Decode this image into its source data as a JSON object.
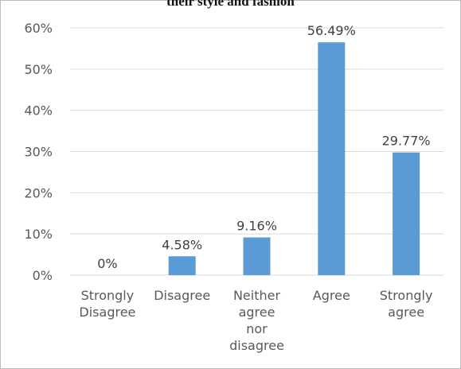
{
  "chart_data": {
    "type": "bar",
    "title": "their style and fashion",
    "categories": [
      [
        "Strongly",
        "Disagree"
      ],
      [
        "Disagree"
      ],
      [
        "Neither",
        "agree",
        "nor",
        "disagree"
      ],
      [
        "Agree"
      ],
      [
        "Strongly",
        "agree"
      ]
    ],
    "values": [
      0,
      4.58,
      9.16,
      56.49,
      29.77
    ],
    "data_labels": [
      "0%",
      "4.58%",
      "9.16%",
      "56.49%",
      "29.77%"
    ],
    "yticks": [
      "0%",
      "10%",
      "20%",
      "30%",
      "40%",
      "50%",
      "60%"
    ],
    "ylim": [
      0,
      60
    ],
    "xlabel": "",
    "ylabel": "",
    "grid": true,
    "bar_color": "#5b9bd5",
    "grid_color": "#d9d9d9"
  }
}
